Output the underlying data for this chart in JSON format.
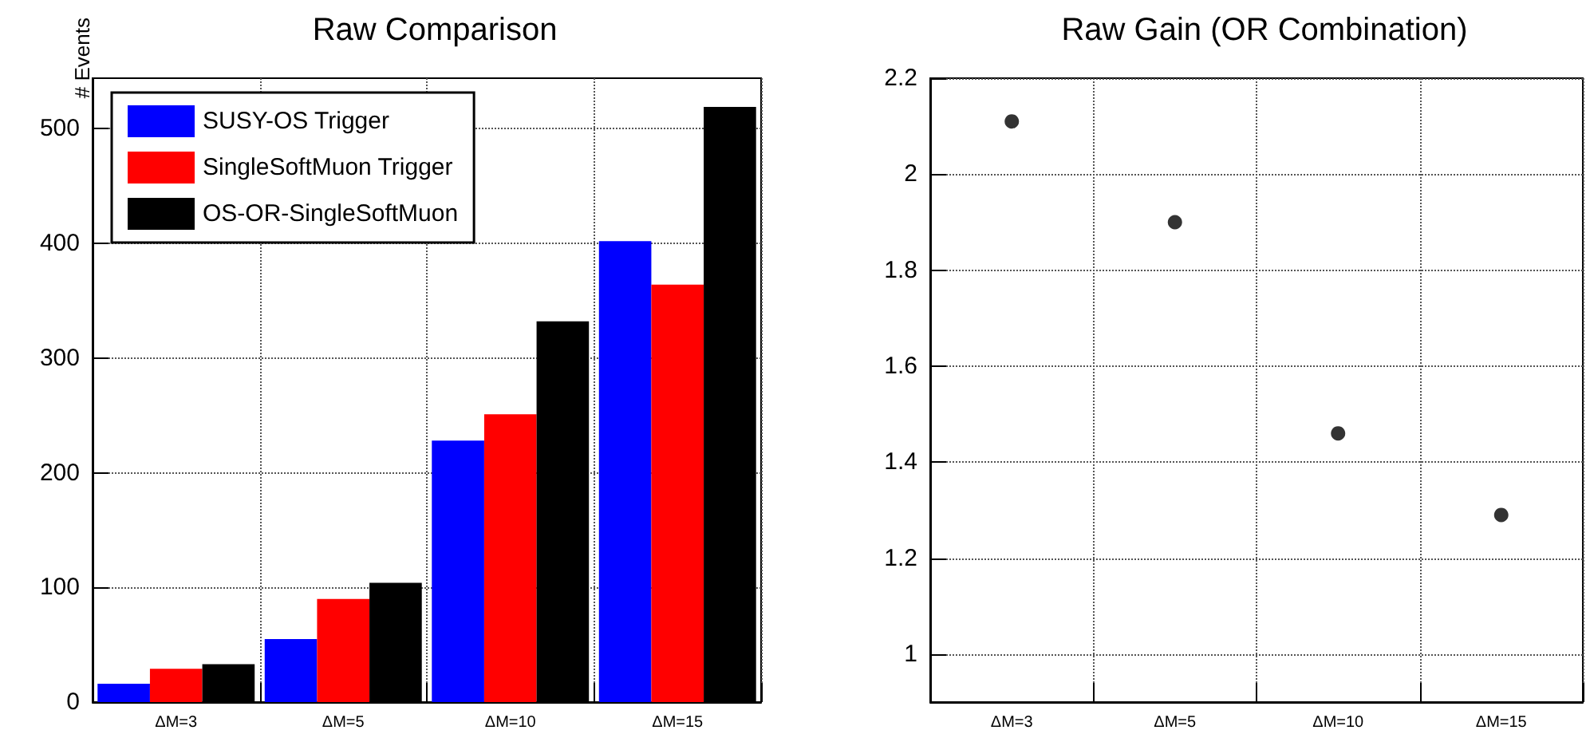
{
  "chart_data": [
    {
      "type": "bar",
      "title": "Raw Comparison",
      "ylabel": "# Events",
      "categories": [
        "ΔM=3",
        "ΔM=5",
        "ΔM=10",
        "ΔM=15"
      ],
      "series": [
        {
          "name": "SUSY-OS Trigger",
          "color": "#0000ff",
          "values": [
            16,
            55,
            228,
            402
          ]
        },
        {
          "name": "SingleSoftMuon Trigger",
          "color": "#ff0000",
          "values": [
            29,
            90,
            251,
            364
          ]
        },
        {
          "name": "OS-OR-SingleSoftMuon",
          "color": "#000000",
          "values": [
            33,
            104,
            332,
            519
          ]
        }
      ],
      "ylim": [
        0,
        544
      ],
      "yticks": [
        0,
        100,
        200,
        300,
        400,
        500
      ],
      "grid": true,
      "legend": "top left"
    },
    {
      "type": "scatter",
      "title": "Raw Gain (OR Combination)",
      "categories": [
        "ΔM=3",
        "ΔM=5",
        "ΔM=10",
        "ΔM=15"
      ],
      "series": [
        {
          "color": "#000000",
          "values": [
            2.11,
            1.9,
            1.46,
            1.29
          ]
        }
      ],
      "ylim": [
        0.9,
        2.2
      ],
      "yticks": [
        1,
        1.2,
        1.4,
        1.6,
        1.8,
        2,
        2.2
      ],
      "grid": true,
      "marker": "circle"
    }
  ]
}
